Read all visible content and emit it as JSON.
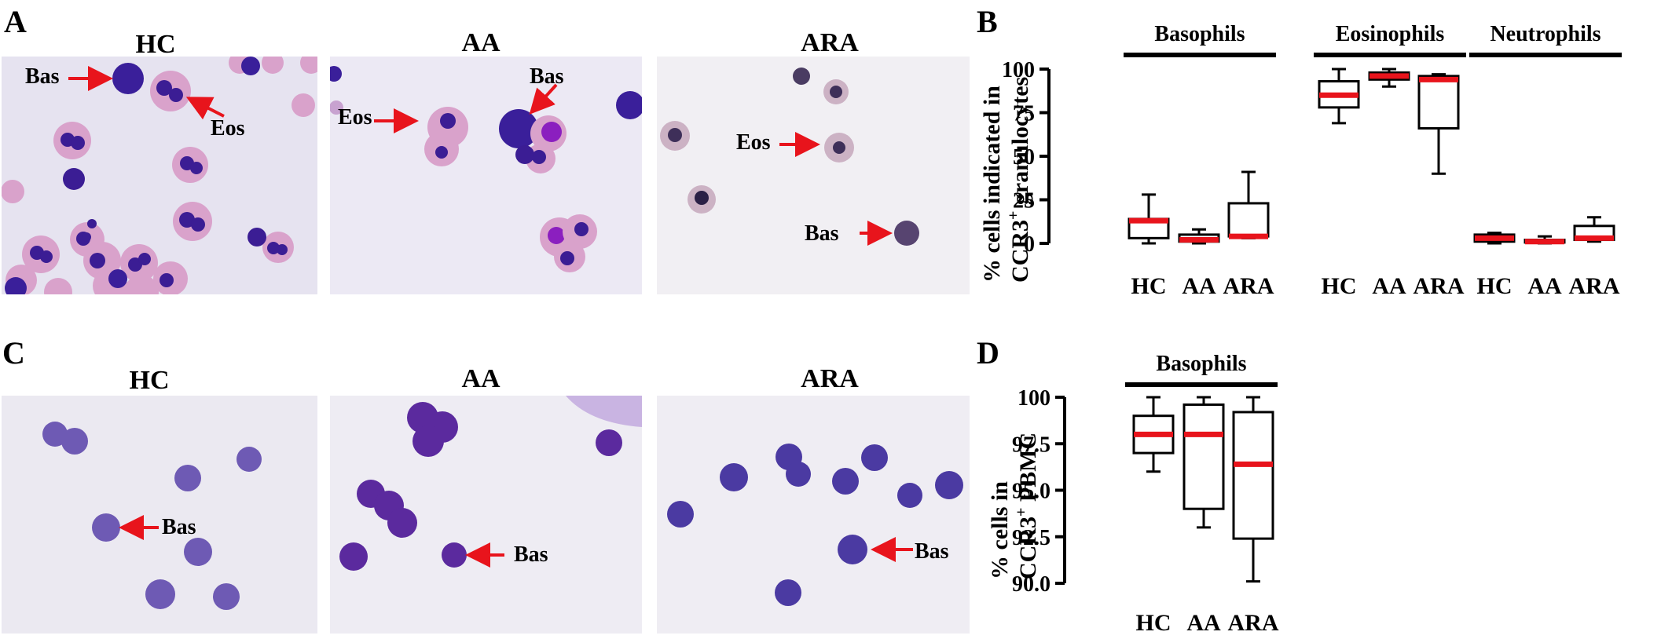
{
  "panels": {
    "a": {
      "letter": "A",
      "images": [
        {
          "title": "HC",
          "labels": [
            "Bas",
            "Eos"
          ]
        },
        {
          "title": "AA",
          "labels": [
            "Eos",
            "Bas"
          ]
        },
        {
          "title": "ARA",
          "labels": [
            "Eos",
            "Bas"
          ]
        }
      ]
    },
    "b": {
      "letter": "B"
    },
    "c": {
      "letter": "C",
      "images": [
        {
          "title": "HC",
          "labels": [
            "Bas"
          ]
        },
        {
          "title": "AA",
          "labels": [
            "Bas"
          ]
        },
        {
          "title": "ARA",
          "labels": [
            "Bas"
          ]
        }
      ]
    },
    "d": {
      "letter": "D"
    }
  },
  "colors": {
    "median": "#e8141c",
    "arrow": "#e8141c",
    "stain_bg": "#e8e6f2",
    "basophil": "#3a1f9a",
    "eosinophil_cyto": "#d99fcb",
    "nucleus": "#3b1d94",
    "pbmc": "#6e5ab4"
  },
  "chart_data": [
    {
      "type": "box",
      "ylabel_line1": "% cells indicated in",
      "ylabel_line2": "CCR3",
      "ylabel_sup": "+",
      "ylabel_line2_rest": " granulocytes",
      "ylim": [
        0,
        100
      ],
      "yticks": [
        "0",
        "25",
        "50",
        "75",
        "100"
      ],
      "groups": [
        {
          "name": "Basophils",
          "categories": [
            "HC",
            "AA",
            "ARA"
          ],
          "boxes": [
            {
              "min": 0,
              "q1": 3,
              "median": 13,
              "q3": 14,
              "max": 28
            },
            {
              "min": 0,
              "q1": 1,
              "median": 2,
              "q3": 5,
              "max": 8
            },
            {
              "min": 3,
              "q1": 4,
              "median": 4,
              "q3": 23,
              "max": 41
            }
          ]
        },
        {
          "name": "Eosinophils",
          "categories": [
            "HC",
            "AA",
            "ARA"
          ],
          "boxes": [
            {
              "min": 69,
              "q1": 78,
              "median": 85,
              "q3": 93,
              "max": 100
            },
            {
              "min": 90,
              "q1": 94,
              "median": 96,
              "q3": 98,
              "max": 100
            },
            {
              "min": 40,
              "q1": 66,
              "median": 94,
              "q3": 96,
              "max": 97
            }
          ]
        },
        {
          "name": "Neutrophils",
          "categories": [
            "HC",
            "AA",
            "ARA"
          ],
          "boxes": [
            {
              "min": 0,
              "q1": 1,
              "median": 3,
              "q3": 5,
              "max": 6
            },
            {
              "min": 0,
              "q1": 0.5,
              "median": 1,
              "q3": 2,
              "max": 4
            },
            {
              "min": 1,
              "q1": 2,
              "median": 3,
              "q3": 10,
              "max": 15
            }
          ]
        }
      ]
    },
    {
      "type": "box",
      "ylabel_line1": "% cells in",
      "ylabel_line2": "CCR3",
      "ylabel_sup": "+",
      "ylabel_line2_rest": " PBMC",
      "ylim": [
        90,
        100
      ],
      "yticks": [
        "90.0",
        "92.5",
        "95.0",
        "97.5",
        "100"
      ],
      "groups": [
        {
          "name": "Basophils",
          "categories": [
            "HC",
            "AA",
            "ARA"
          ],
          "boxes": [
            {
              "min": 96,
              "q1": 97,
              "median": 98,
              "q3": 99,
              "max": 100
            },
            {
              "min": 93,
              "q1": 94,
              "median": 98,
              "q3": 99.6,
              "max": 100
            },
            {
              "min": 90.1,
              "q1": 92.4,
              "median": 96.4,
              "q3": 99.2,
              "max": 100
            }
          ]
        }
      ]
    }
  ]
}
